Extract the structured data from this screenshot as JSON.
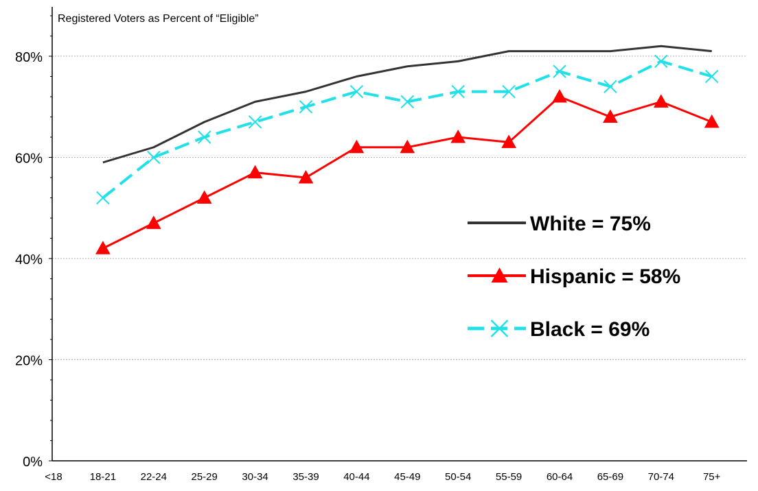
{
  "chart_data": {
    "type": "line",
    "title": "Registered Voters as Percent of “Eligible”",
    "xlabel": "",
    "ylabel": "",
    "categories": [
      "<18",
      "18-21",
      "22-24",
      "25-29",
      "30-34",
      "35-39",
      "40-44",
      "45-49",
      "50-54",
      "55-59",
      "60-64",
      "65-69",
      "70-74",
      "75+"
    ],
    "ylim": [
      0,
      88
    ],
    "yticks": [
      0,
      20,
      40,
      60,
      80
    ],
    "ytick_labels": [
      "0%",
      "20%",
      "40%",
      "60%",
      "80%"
    ],
    "grid": true,
    "legend_position": "right",
    "series": [
      {
        "name": "White = 75%",
        "color": "#333333",
        "marker": "none",
        "dash": "solid",
        "values": [
          null,
          59,
          62,
          67,
          71,
          73,
          76,
          78,
          79,
          81,
          81,
          81,
          82,
          81
        ]
      },
      {
        "name": "Hispanic = 58%",
        "color": "#ff0000",
        "marker": "triangle",
        "dash": "solid",
        "values": [
          null,
          42,
          47,
          52,
          57,
          56,
          62,
          62,
          64,
          63,
          72,
          68,
          71,
          67
        ]
      },
      {
        "name": "Black = 69%",
        "color": "#22e0e8",
        "marker": "x",
        "dash": "dashed",
        "values": [
          null,
          52,
          60,
          64,
          67,
          70,
          73,
          71,
          73,
          73,
          77,
          74,
          79,
          76
        ]
      }
    ]
  }
}
